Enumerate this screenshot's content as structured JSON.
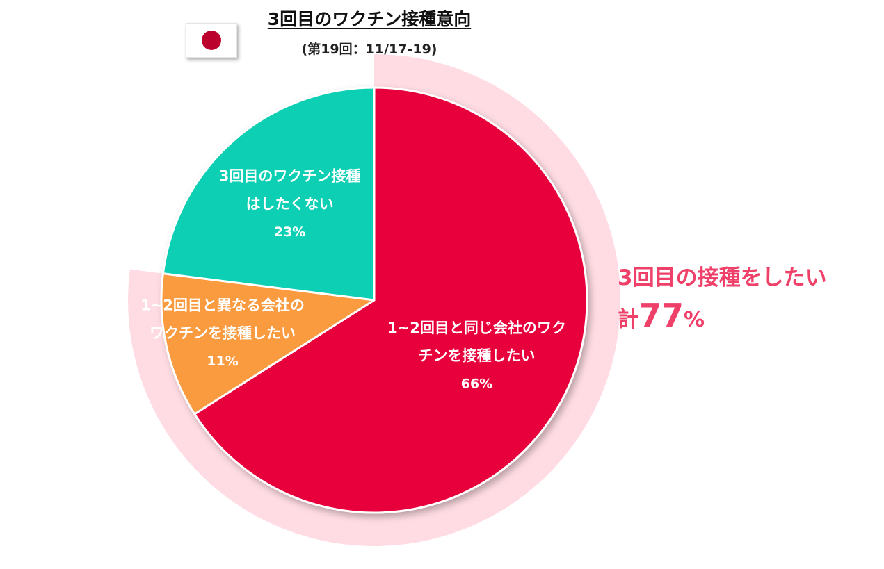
{
  "header": {
    "title": "3回目のワクチン接種意向",
    "subtitle": "(第19回：11/17-19)",
    "flag_icon": "japan-flag-icon"
  },
  "chart_data": {
    "type": "pie",
    "title": "3回目のワクチン接種意向",
    "subtitle": "(第19回：11/17-19)",
    "start_angle_deg": 0,
    "direction": "clockwise",
    "slices": [
      {
        "label_lines": [
          "1~2回目と同じ会社のワク",
          "チンを接種したい"
        ],
        "value": 66,
        "value_label": "66%",
        "color": "#e8063c"
      },
      {
        "label_lines": [
          "1~2回目と異なる会社の",
          "ワクチンを接種したい"
        ],
        "value": 11,
        "value_label": "11%",
        "color": "#fb9b3f"
      },
      {
        "label_lines": [
          "3回目のワクチン接種",
          "はしたくない"
        ],
        "value": 23,
        "value_label": "23%",
        "color": "#0fcfb3"
      }
    ],
    "highlight_ring": {
      "covers_slices": [
        0,
        1
      ],
      "value": 77,
      "color": "#ffdce3"
    },
    "callout": {
      "line1": "3回目の接種をしたい",
      "prefix": "計",
      "total": "77",
      "unit": "%",
      "color": "#ef4069"
    }
  }
}
